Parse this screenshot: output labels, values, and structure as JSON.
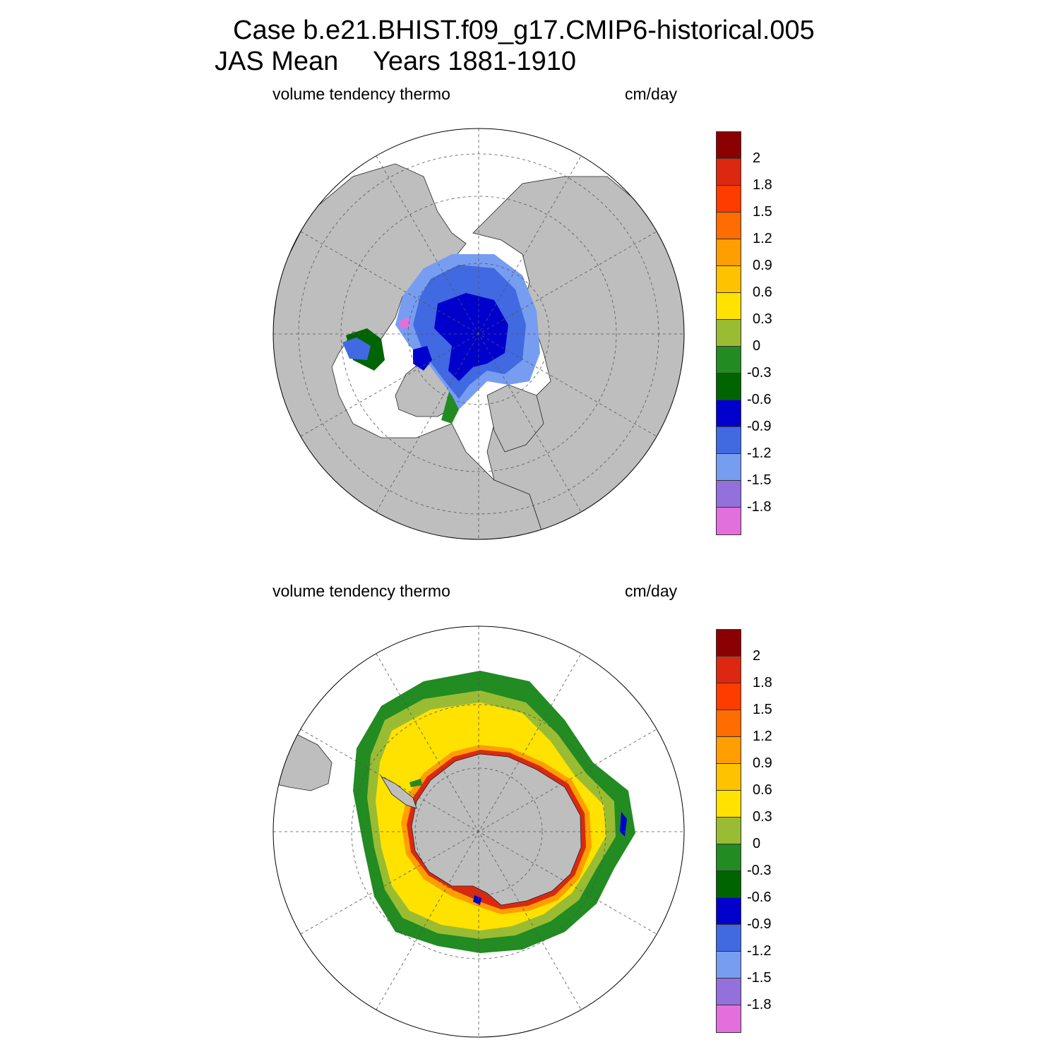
{
  "title": {
    "line1": "Case b.e21.BHIST.f09_g17.CMIP6-historical.005",
    "line2_season": "JAS Mean",
    "line2_years": "Years 1881-1910"
  },
  "panels": [
    {
      "name": "arctic",
      "left_label": "volume tendency thermo",
      "right_label": "cm/day",
      "colorbar": {
        "colors": [
          "#8b0000",
          "#dc2810",
          "#ff3c00",
          "#ff6c00",
          "#ff9e00",
          "#ffc200",
          "#ffe200",
          "#9abc33",
          "#228b22",
          "#006400",
          "#0000cd",
          "#4169e1",
          "#779df1",
          "#9370db",
          "#e36fdc"
        ],
        "labels": [
          "2",
          "1.8",
          "1.5",
          "1.2",
          "0.9",
          "0.6",
          "0.3",
          "0",
          "-0.3",
          "-0.6",
          "-0.9",
          "-1.2",
          "-1.5",
          "-1.8"
        ]
      }
    },
    {
      "name": "antarctic",
      "left_label": "volume tendency thermo",
      "right_label": "cm/day",
      "colorbar": {
        "colors": [
          "#8b0000",
          "#dc2810",
          "#ff3c00",
          "#ff6c00",
          "#ff9e00",
          "#ffc200",
          "#ffe200",
          "#9abc33",
          "#228b22",
          "#006400",
          "#0000cd",
          "#4169e1",
          "#779df1",
          "#9370db",
          "#e36fdc"
        ],
        "labels": [
          "2",
          "1.8",
          "1.5",
          "1.2",
          "0.9",
          "0.6",
          "0.3",
          "0",
          "-0.3",
          "-0.6",
          "-0.9",
          "-1.2",
          "-1.5",
          "-1.8"
        ]
      }
    }
  ],
  "colors": {
    "land": "#bebebe",
    "ocean": "#ffffff",
    "grid": "#555555"
  }
}
